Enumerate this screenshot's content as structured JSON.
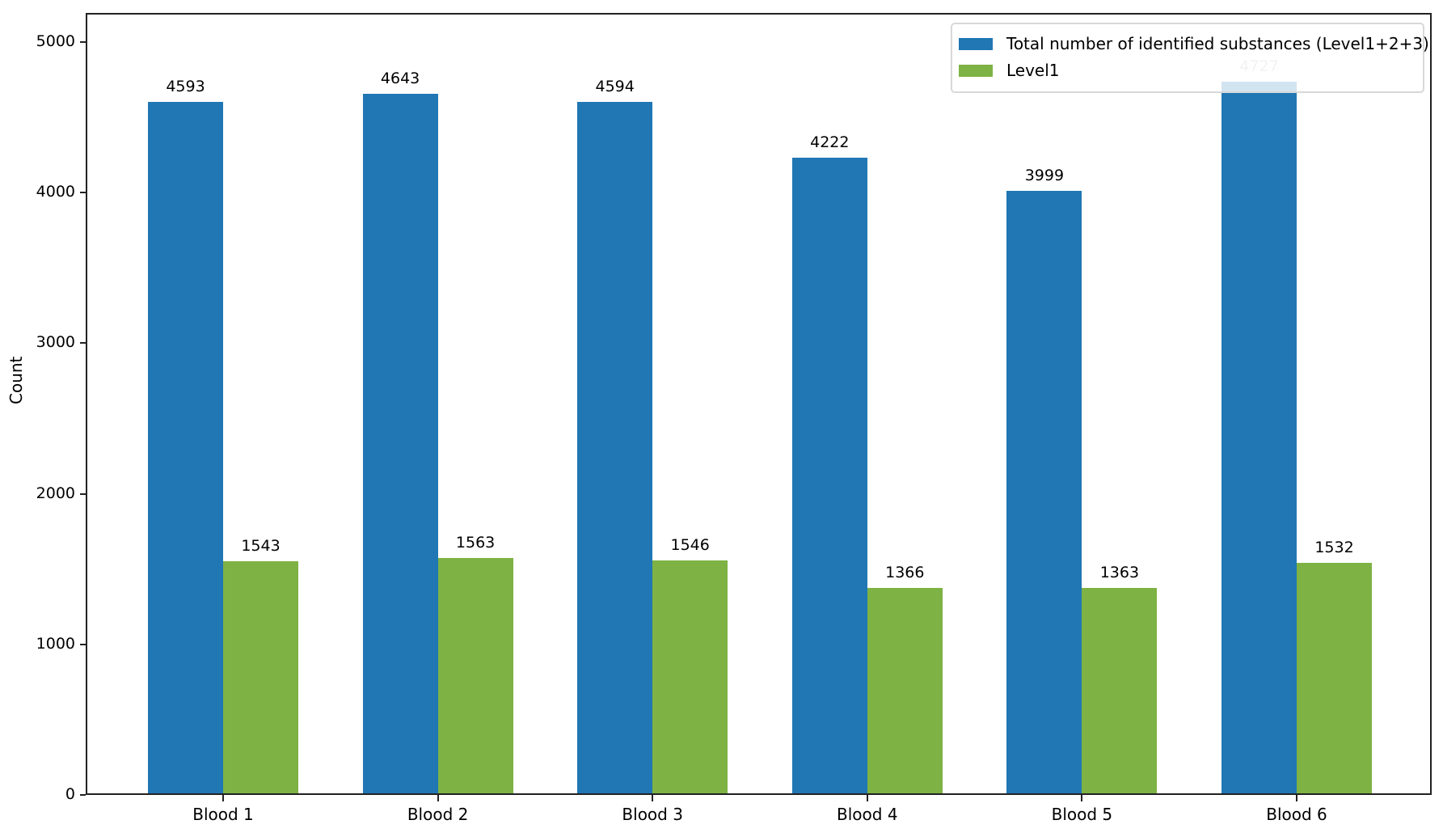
{
  "chart_data": {
    "type": "bar",
    "title": "",
    "xlabel": "",
    "ylabel": "Count",
    "categories": [
      "Blood 1",
      "Blood 2",
      "Blood 3",
      "Blood 4",
      "Blood 5",
      "Blood 6"
    ],
    "series": [
      {
        "name": "Total number of identified substances (Level1+2+3)",
        "color": "#2077b4",
        "values": [
          4593,
          4643,
          4594,
          4222,
          3999,
          4727
        ]
      },
      {
        "name": "Level1",
        "color": "#7eb244",
        "values": [
          1543,
          1563,
          1546,
          1366,
          1363,
          1532
        ]
      }
    ],
    "ylim": [
      0,
      5190
    ],
    "yticks": [
      0,
      1000,
      2000,
      3000,
      4000,
      5000
    ],
    "grid": false,
    "legend_position": "upper right",
    "data_labels": true
  }
}
